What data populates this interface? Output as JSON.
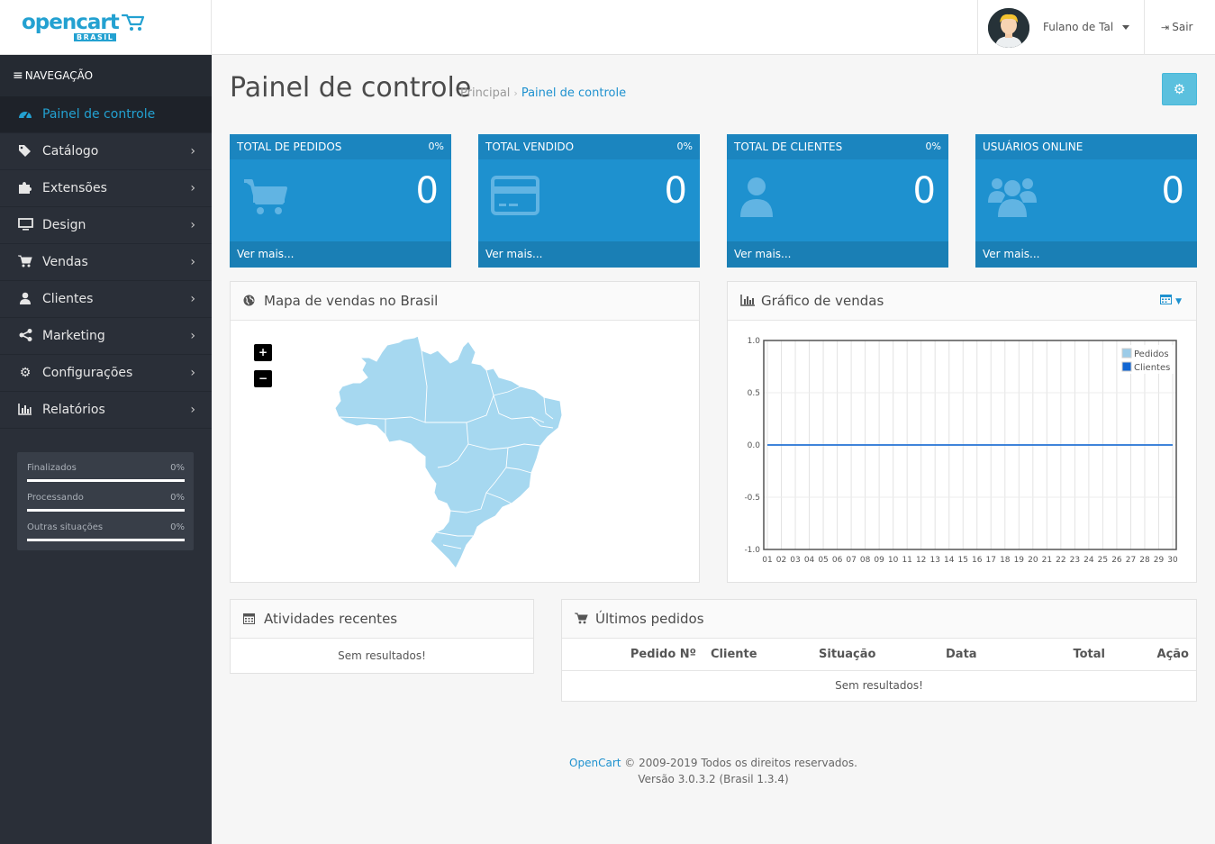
{
  "header": {
    "logo_text": "opencart",
    "logo_sub": "BRASIL",
    "user_name": "Fulano de Tal",
    "logout_label": "Sair"
  },
  "sidebar": {
    "nav_title": "NAVEGAÇÃO",
    "items": [
      {
        "label": "Painel de controle",
        "icon": "dashboard-icon",
        "active": true
      },
      {
        "label": "Catálogo",
        "icon": "tags-icon"
      },
      {
        "label": "Extensões",
        "icon": "puzzle-icon"
      },
      {
        "label": "Design",
        "icon": "monitor-icon"
      },
      {
        "label": "Vendas",
        "icon": "cart-icon"
      },
      {
        "label": "Clientes",
        "icon": "user-icon"
      },
      {
        "label": "Marketing",
        "icon": "share-icon"
      },
      {
        "label": "Configurações",
        "icon": "cog-icon"
      },
      {
        "label": "Relatórios",
        "icon": "bar-chart-icon"
      }
    ],
    "stats": [
      {
        "label": "Finalizados",
        "value": "0%"
      },
      {
        "label": "Processando",
        "value": "0%"
      },
      {
        "label": "Outras situações",
        "value": "0%"
      }
    ]
  },
  "page": {
    "title": "Painel de controle",
    "breadcrumb": [
      "Principal",
      "Painel de controle"
    ]
  },
  "tiles": [
    {
      "title": "TOTAL DE PEDIDOS",
      "percent": "0%",
      "value": "0",
      "link": "Ver mais...",
      "icon": "cart-icon"
    },
    {
      "title": "TOTAL VENDIDO",
      "percent": "0%",
      "value": "0",
      "link": "Ver mais...",
      "icon": "credit-card-icon"
    },
    {
      "title": "TOTAL DE CLIENTES",
      "percent": "0%",
      "value": "0",
      "link": "Ver mais...",
      "icon": "user-icon"
    },
    {
      "title": "USUÁRIOS ONLINE",
      "percent": "",
      "value": "0",
      "link": "Ver mais...",
      "icon": "users-icon"
    }
  ],
  "map_panel": {
    "title": "Mapa de vendas no Brasil",
    "zoom_in": "+",
    "zoom_out": "−"
  },
  "chart_panel": {
    "title": "Gráfico de vendas"
  },
  "chart_data": {
    "type": "line",
    "title": "",
    "x": [
      "01",
      "02",
      "03",
      "04",
      "05",
      "06",
      "07",
      "08",
      "09",
      "10",
      "11",
      "12",
      "13",
      "14",
      "15",
      "16",
      "17",
      "18",
      "19",
      "20",
      "21",
      "22",
      "23",
      "24",
      "25",
      "26",
      "27",
      "28",
      "29",
      "30"
    ],
    "series": [
      {
        "name": "Pedidos",
        "values": [
          0,
          0,
          0,
          0,
          0,
          0,
          0,
          0,
          0,
          0,
          0,
          0,
          0,
          0,
          0,
          0,
          0,
          0,
          0,
          0,
          0,
          0,
          0,
          0,
          0,
          0,
          0,
          0,
          0,
          0
        ],
        "color": "#9bcbe8"
      },
      {
        "name": "Clientes",
        "values": [
          0,
          0,
          0,
          0,
          0,
          0,
          0,
          0,
          0,
          0,
          0,
          0,
          0,
          0,
          0,
          0,
          0,
          0,
          0,
          0,
          0,
          0,
          0,
          0,
          0,
          0,
          0,
          0,
          0,
          0
        ],
        "color": "#1065d2"
      }
    ],
    "y_ticks": [
      "1.0",
      "0.5",
      "0.0",
      "-0.5",
      "-1.0"
    ],
    "ylim": [
      -1,
      1
    ],
    "legend": "top-right",
    "grid": true
  },
  "activity_panel": {
    "title": "Atividades recentes",
    "empty": "Sem resultados!"
  },
  "orders_panel": {
    "title": "Últimos pedidos",
    "columns": [
      "Pedido Nº",
      "Cliente",
      "Situação",
      "Data",
      "Total",
      "Ação"
    ],
    "empty": "Sem resultados!"
  },
  "footer": {
    "brand": "OpenCart",
    "copyright": "© 2009-2019 Todos os direitos reservados.",
    "version": "Versão 3.0.3.2 (Brasil 1.3.4)"
  },
  "colors": {
    "accent": "#1e91cf",
    "sidebar": "#2a2f38",
    "map_fill": "#a6d8f0"
  }
}
